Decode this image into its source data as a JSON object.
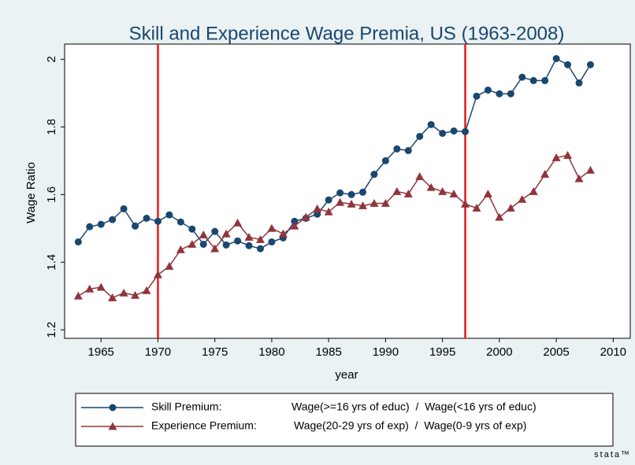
{
  "chart_data": {
    "type": "line",
    "title": "Skill and Experience Wage Premia, US (1963-2008)",
    "xlabel": "year",
    "ylabel": "Wage Ratio",
    "x": [
      1963,
      1964,
      1965,
      1966,
      1967,
      1968,
      1969,
      1970,
      1971,
      1972,
      1973,
      1974,
      1975,
      1976,
      1977,
      1978,
      1979,
      1980,
      1981,
      1982,
      1983,
      1984,
      1985,
      1986,
      1987,
      1988,
      1989,
      1990,
      1991,
      1992,
      1993,
      1994,
      1995,
      1996,
      1997,
      1998,
      1999,
      2000,
      2001,
      2002,
      2003,
      2004,
      2005,
      2006,
      2007,
      2008
    ],
    "series": [
      {
        "name": "Skill Premium:",
        "description": "Wage(>=16 yrs of educ)  /  Wage(<16 yrs of educ)",
        "color": "#1a476f",
        "marker": "circle",
        "values": [
          1.46,
          1.505,
          1.512,
          1.526,
          1.558,
          1.507,
          1.53,
          1.521,
          1.54,
          1.519,
          1.498,
          1.453,
          1.491,
          1.451,
          1.463,
          1.449,
          1.44,
          1.46,
          1.472,
          1.521,
          1.53,
          1.542,
          1.584,
          1.605,
          1.6,
          1.607,
          1.66,
          1.7,
          1.735,
          1.73,
          1.772,
          1.807,
          1.781,
          1.788,
          1.786,
          1.891,
          1.909,
          1.898,
          1.898,
          1.947,
          1.937,
          1.937,
          2.002,
          1.984,
          1.93,
          1.984
        ]
      },
      {
        "name": "Experience Premium:",
        "description": "Wage(20-29 yrs of exp)  /  Wage(0-9 yrs of exp)",
        "color": "#90353b",
        "marker": "triangle",
        "values": [
          1.3,
          1.321,
          1.326,
          1.295,
          1.309,
          1.302,
          1.316,
          1.363,
          1.388,
          1.437,
          1.453,
          1.481,
          1.44,
          1.484,
          1.516,
          1.474,
          1.467,
          1.5,
          1.484,
          1.507,
          1.533,
          1.558,
          1.549,
          1.577,
          1.572,
          1.567,
          1.574,
          1.574,
          1.609,
          1.602,
          1.653,
          1.621,
          1.609,
          1.602,
          1.572,
          1.56,
          1.602,
          1.533,
          1.56,
          1.586,
          1.609,
          1.66,
          1.709,
          1.716,
          1.647,
          1.672
        ]
      }
    ],
    "vlines": [
      1970,
      1997
    ],
    "vline_color": "#e8191c",
    "xlim": [
      1961.8,
      2011.5
    ],
    "xticks": [
      1965,
      1970,
      1975,
      1980,
      1985,
      1990,
      1995,
      2000,
      2005,
      2010
    ],
    "ylim": [
      1.175,
      2.045
    ],
    "yticks": [
      1.2,
      1.4,
      1.6,
      1.8,
      2
    ],
    "grid": false,
    "logo": "stata™"
  }
}
